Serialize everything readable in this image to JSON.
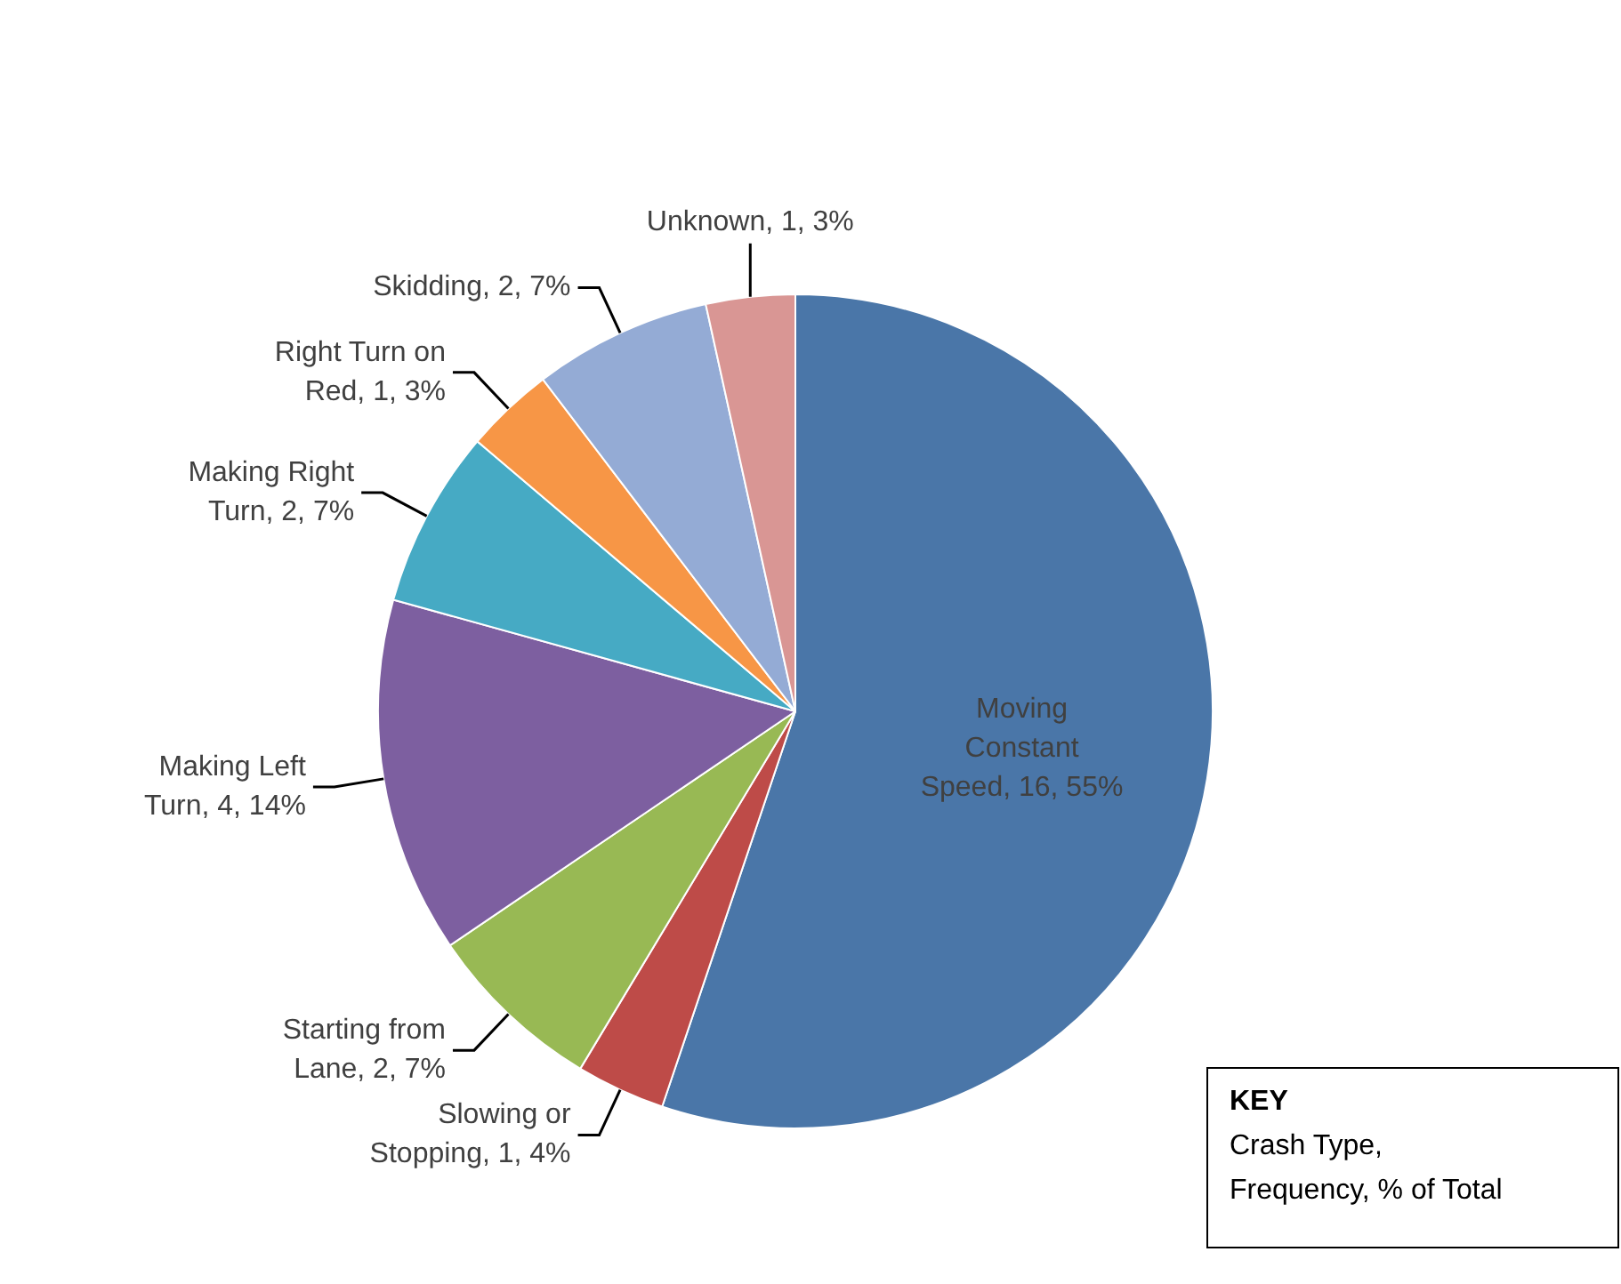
{
  "chart_data": {
    "type": "pie",
    "categories": [
      "Moving Constant Speed, 16, 55%",
      "Slowing or Stopping, 1, 4%",
      "Starting from Lane, 2, 7%",
      "Making Left Turn, 4, 14%",
      "Making Right Turn, 2, 7%",
      "Right Turn on Red, 1, 3%",
      "Skidding, 2, 7%",
      "Unknown, 1, 3%"
    ],
    "values": [
      16,
      1,
      2,
      4,
      2,
      1,
      2,
      1
    ],
    "colors": [
      "#4a76a8",
      "#be4b48",
      "#98b954",
      "#7d5fa0",
      "#46aac4",
      "#f79646",
      "#94abd5",
      "#d99694"
    ],
    "annotations": [
      "KEY",
      "Crash Type,",
      "Frequency, % of Total"
    ],
    "legend": false
  }
}
